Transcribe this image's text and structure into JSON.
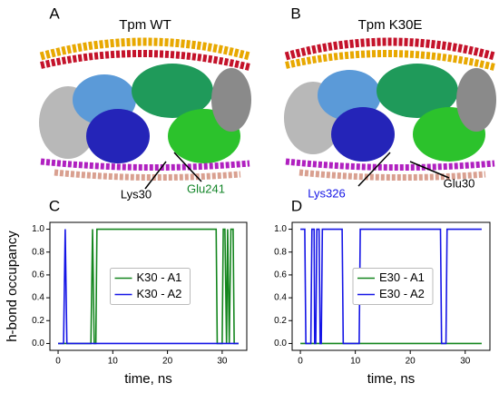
{
  "images": [
    {
      "panel": "A",
      "title": "Tpm WT",
      "labels": [
        {
          "text": "Lys30",
          "color": "#000000"
        },
        {
          "text": "Glu241",
          "color": "#14862a"
        }
      ]
    },
    {
      "panel": "B",
      "title": "Tpm K30E",
      "labels": [
        {
          "text": "Lys326",
          "color": "#1515e6"
        },
        {
          "text": "Glu30",
          "color": "#000000"
        }
      ]
    }
  ],
  "chart_data": [
    {
      "type": "line",
      "panel": "C",
      "xlabel": "time, ns",
      "ylabel": "h-bond occupancy",
      "xlim": [
        -1.5,
        34.5
      ],
      "xticks": [
        0,
        10,
        20,
        30
      ],
      "ylim": [
        -0.06,
        1.06
      ],
      "yticks": [
        {
          "value": 0,
          "label": "0.0"
        },
        0.2,
        0.4,
        0.6,
        0.8,
        {
          "value": 1,
          "label": "1.0"
        }
      ],
      "legend": "center",
      "series": [
        {
          "name": "K30 - A1",
          "color": "#14861e",
          "x": [
            0,
            6.0,
            6.3,
            6.6,
            6.9,
            7.1,
            28.9,
            29.1,
            30.0,
            30.2,
            30.5,
            30.8,
            31.0,
            31.3,
            31.6,
            32.0,
            32.2,
            33
          ],
          "values": [
            0,
            0,
            1,
            0,
            0,
            1,
            1,
            0,
            0,
            1,
            1,
            0,
            1,
            0,
            1,
            1,
            0,
            0
          ]
        },
        {
          "name": "K30 - A2",
          "color": "#1515e6",
          "x": [
            0,
            1.0,
            1.3,
            1.6,
            33
          ],
          "values": [
            0,
            0,
            1,
            0,
            0
          ]
        }
      ]
    },
    {
      "type": "line",
      "panel": "D",
      "xlabel": "time, ns",
      "xlim": [
        -1.5,
        34.5
      ],
      "xticks": [
        0,
        10,
        20,
        30
      ],
      "ylim": [
        -0.06,
        1.06
      ],
      "yticks": [
        {
          "value": 0,
          "label": "0.0"
        },
        0.2,
        0.4,
        0.6,
        0.8,
        {
          "value": 1,
          "label": "1.0"
        }
      ],
      "legend": "center",
      "series": [
        {
          "name": "E30 - A1",
          "color": "#14861e",
          "x": [
            0,
            33
          ],
          "values": [
            0,
            0
          ]
        },
        {
          "name": "E30 - A2",
          "color": "#1515e6",
          "x": [
            0,
            0.8,
            1.0,
            1.9,
            2.1,
            2.5,
            2.6,
            2.8,
            3.0,
            3.4,
            3.6,
            3.8,
            4.0,
            7.6,
            7.8,
            10.7,
            10.9,
            25.5,
            25.7,
            26.5,
            26.7,
            33
          ],
          "values": [
            1,
            1,
            0,
            0,
            1,
            1,
            0,
            0,
            1,
            1,
            0,
            0,
            1,
            1,
            0,
            0,
            1,
            1,
            0,
            0,
            1,
            1
          ]
        }
      ]
    }
  ]
}
